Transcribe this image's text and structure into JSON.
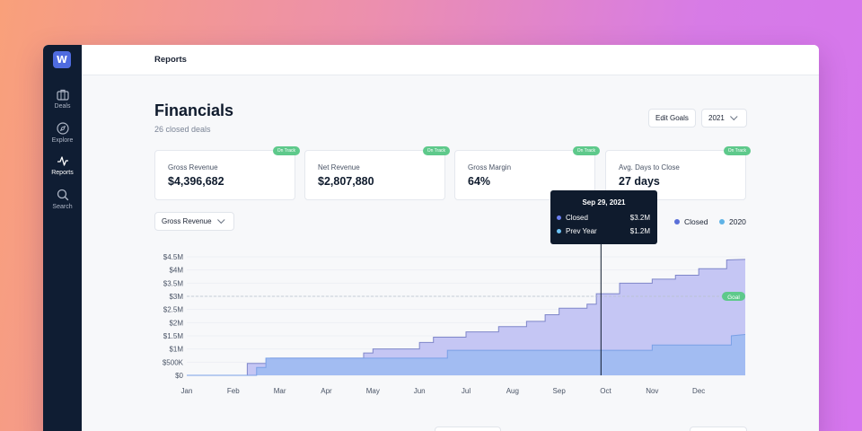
{
  "app": {
    "logo_letter": "W",
    "brand_color": "#4f6ce0"
  },
  "sidebar": {
    "items": [
      {
        "label": "Deals",
        "icon": "briefcase-icon",
        "active": false
      },
      {
        "label": "Explore",
        "icon": "compass-icon",
        "active": false
      },
      {
        "label": "Reports",
        "icon": "activity-icon",
        "active": true
      },
      {
        "label": "Search",
        "icon": "search-icon",
        "active": false
      }
    ]
  },
  "header": {
    "title": "Reports"
  },
  "page": {
    "title": "Financials",
    "subtitle": "26 closed deals",
    "edit_goals_label": "Edit Goals",
    "year_select": "2021"
  },
  "kpis": [
    {
      "label": "Gross Revenue",
      "value": "$4,396,682",
      "badge": "On Track"
    },
    {
      "label": "Net Revenue",
      "value": "$2,807,880",
      "badge": "On Track"
    },
    {
      "label": "Gross Margin",
      "value": "64%",
      "badge": "On Track"
    },
    {
      "label": "Avg. Days to Close",
      "value": "27 days",
      "badge": "On Track"
    }
  ],
  "metric_select": "Gross Revenue",
  "legend": [
    {
      "name": "Closed",
      "color": "#5a6fd8"
    },
    {
      "name": "2020",
      "color": "#5fb3e6"
    }
  ],
  "tooltip": {
    "date": "Sep 29, 2021",
    "rows": [
      {
        "name": "Closed",
        "value": "$3.2M",
        "color": "#6b7ff0"
      },
      {
        "name": "Prev Year",
        "value": "$1.2M",
        "color": "#6cc3f5"
      }
    ]
  },
  "goal_label": "Goal",
  "colors": {
    "badge_green": "#5ec98b",
    "closed_fill": "#c5c6f4",
    "prev_fill": "#a2bcf2",
    "sidebar_bg": "#0f1d33"
  },
  "chart_data": {
    "type": "area",
    "x_ticks": [
      "Jan",
      "Feb",
      "Mar",
      "Apr",
      "May",
      "Jun",
      "Jul",
      "Aug",
      "Sep",
      "Oct",
      "Nov",
      "Dec"
    ],
    "y_ticks": [
      "$0",
      "$500K",
      "$1M",
      "$1.5M",
      "$2M",
      "$2.5M",
      "$3M",
      "$3.5M",
      "$4M",
      "$4.5M"
    ],
    "ylim": [
      0,
      4500000
    ],
    "goal": 3000000,
    "grid": true,
    "series": [
      {
        "name": "Closed",
        "x": [
          0,
          1.3,
          1.3,
          1.8,
          1.8,
          3.8,
          3.8,
          4.0,
          4.0,
          5.0,
          5.0,
          5.3,
          5.3,
          6.0,
          6.0,
          6.7,
          6.7,
          7.3,
          7.3,
          7.7,
          7.7,
          8.0,
          8.0,
          8.6,
          8.6,
          8.8,
          8.8,
          9.3,
          9.3,
          10.0,
          10.0,
          10.5,
          10.5,
          11.0,
          11.0,
          11.6,
          11.6,
          12
        ],
        "values": [
          0,
          0,
          450000,
          450000,
          650000,
          650000,
          850000,
          850000,
          1000000,
          1000000,
          1250000,
          1250000,
          1450000,
          1450000,
          1650000,
          1650000,
          1850000,
          1850000,
          2050000,
          2050000,
          2300000,
          2300000,
          2550000,
          2550000,
          2700000,
          2700000,
          3100000,
          3100000,
          3500000,
          3500000,
          3650000,
          3650000,
          3800000,
          3800000,
          4050000,
          4050000,
          4380000,
          4400000
        ]
      },
      {
        "name": "2020",
        "x": [
          0,
          1.5,
          1.5,
          1.7,
          1.7,
          5.6,
          5.6,
          10.0,
          10.0,
          11.7,
          11.7,
          12
        ],
        "values": [
          0,
          0,
          300000,
          300000,
          650000,
          650000,
          950000,
          950000,
          1150000,
          1150000,
          1500000,
          1550000
        ]
      }
    ],
    "hover_x": 8.9
  }
}
